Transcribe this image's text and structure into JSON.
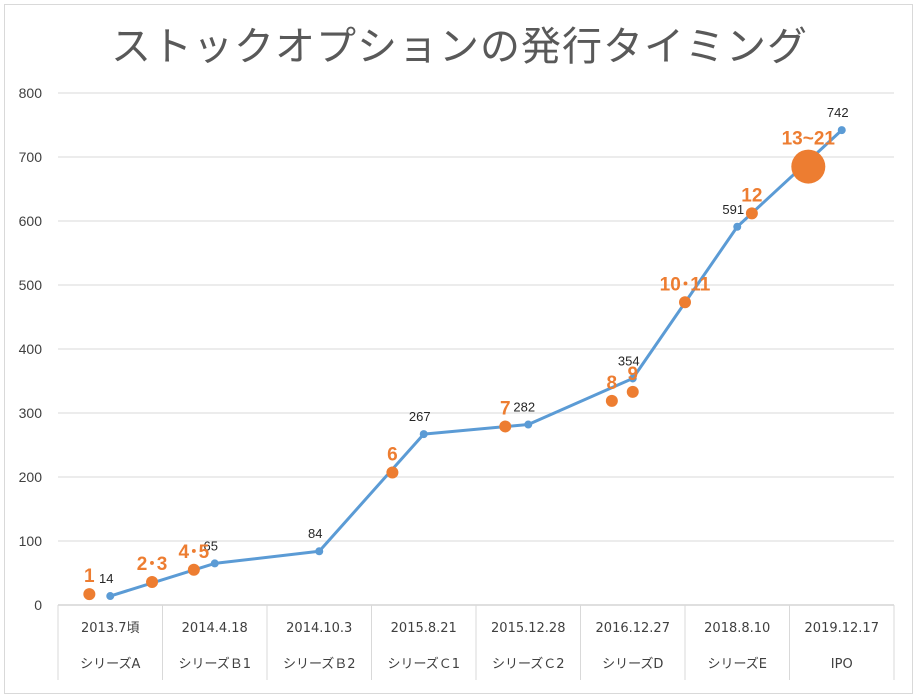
{
  "chart_data": {
    "type": "line",
    "title": "ストックオプションの発行タイミング",
    "ylim": [
      0,
      800
    ],
    "y_ticks": [
      0,
      100,
      200,
      300,
      400,
      500,
      600,
      700,
      800
    ],
    "grid": true,
    "categories": [
      {
        "date": "2013.7頃",
        "round": "シリーズA"
      },
      {
        "date": "2014.4.18",
        "round": "シリーズＢ1"
      },
      {
        "date": "2014.10.3",
        "round": "シリーズＢ2"
      },
      {
        "date": "2015.8.21",
        "round": "シリーズＣ1"
      },
      {
        "date": "2015.12.28",
        "round": "シリーズＣ2"
      },
      {
        "date": "2016.12.27",
        "round": "シリーズD"
      },
      {
        "date": "2018.8.10",
        "round": "シリーズE"
      },
      {
        "date": "2019.12.17",
        "round": "IPO"
      }
    ],
    "series": [
      {
        "color": "#5b9bd5",
        "points": [
          {
            "category": 0,
            "y": 14,
            "label": "14"
          },
          {
            "category": 1,
            "y": 65,
            "label": "65"
          },
          {
            "category": 2,
            "y": 84,
            "label": "84"
          },
          {
            "category": 3,
            "y": 267,
            "label": "267"
          },
          {
            "category": 4,
            "y": 282,
            "label": "282"
          },
          {
            "category": 5,
            "y": 354,
            "label": "354"
          },
          {
            "category": 6,
            "y": 591,
            "label": "591"
          },
          {
            "category": 7,
            "y": 742,
            "label": "742"
          }
        ]
      }
    ],
    "markers": {
      "color": "#ed7d31",
      "items": [
        {
          "label": "1",
          "category": 0,
          "offset": -0.2,
          "y": 17,
          "big": false
        },
        {
          "label": "2･3",
          "category": 0,
          "offset": 0.4,
          "y": 36,
          "big": false
        },
        {
          "label": "4･5",
          "category": 1,
          "offset": -0.2,
          "y": 55,
          "big": false
        },
        {
          "label": "6",
          "category": 2,
          "offset": 0.7,
          "y": 207,
          "big": false
        },
        {
          "label": "7",
          "category": 4,
          "offset": -0.22,
          "y": 279,
          "big": false
        },
        {
          "label": "8",
          "category": 5,
          "offset": -0.2,
          "y": 319,
          "big": false
        },
        {
          "label": "9",
          "category": 5,
          "offset": 0.0,
          "y": 333,
          "big": false
        },
        {
          "label": "10･11",
          "category": 5,
          "offset": 0.5,
          "y": 473,
          "big": false
        },
        {
          "label": "12",
          "category": 6,
          "offset": 0.14,
          "y": 612,
          "big": false
        },
        {
          "label": "13~21",
          "category": 7,
          "offset": -0.32,
          "y": 685,
          "big": true
        }
      ]
    }
  }
}
